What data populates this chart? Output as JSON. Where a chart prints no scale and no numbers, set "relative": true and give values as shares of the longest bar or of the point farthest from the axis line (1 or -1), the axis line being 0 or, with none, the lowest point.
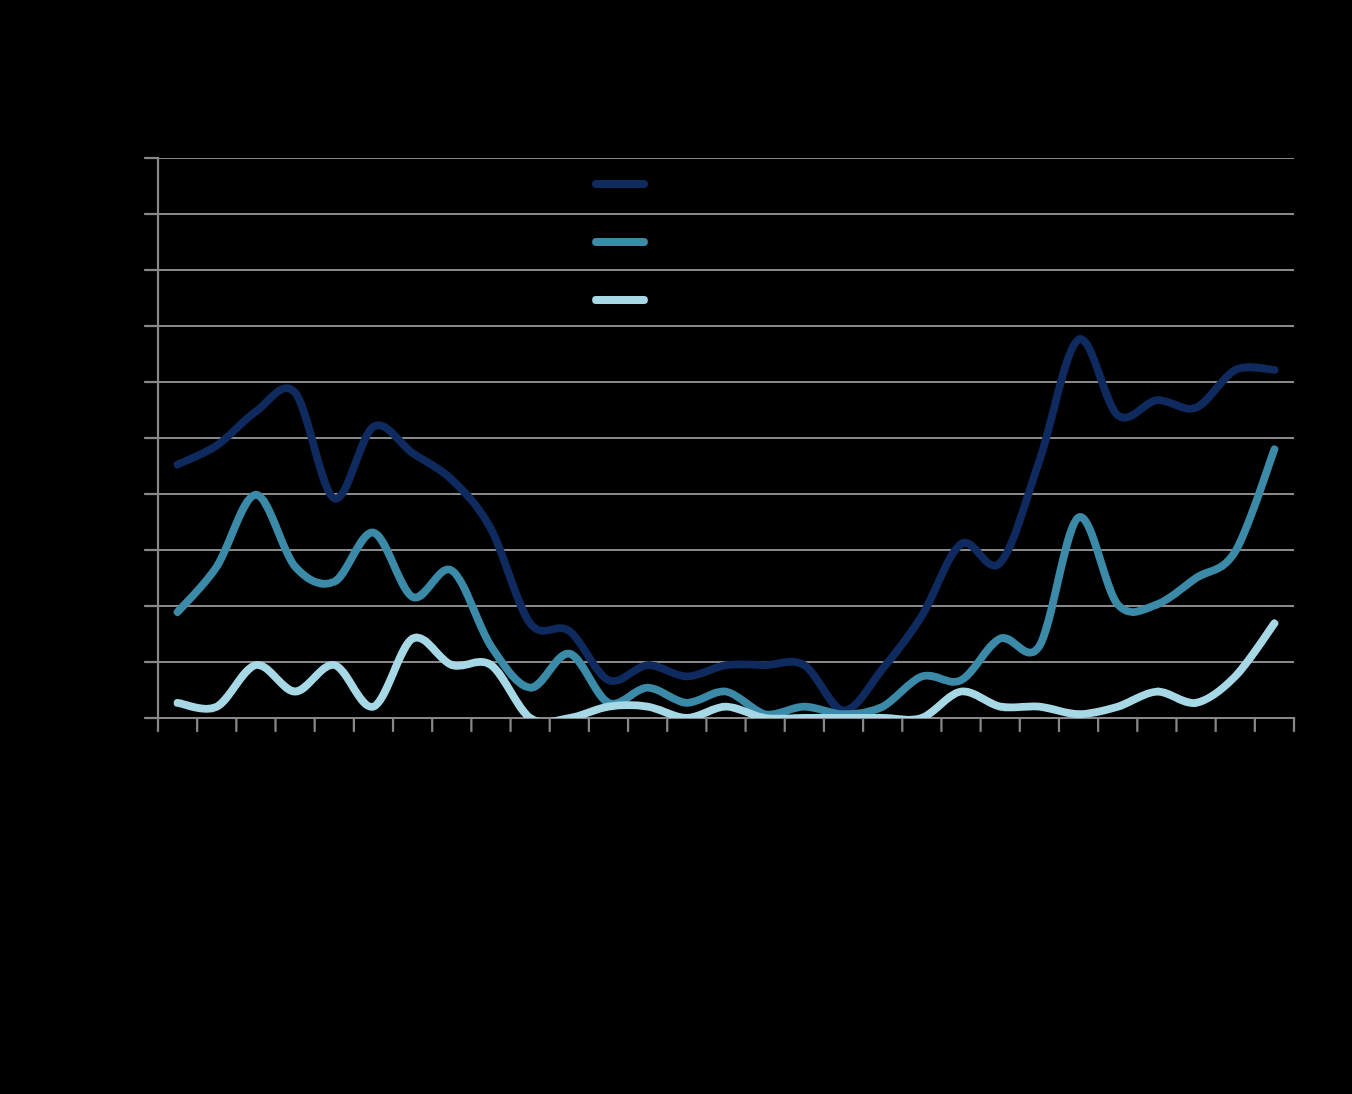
{
  "chart_data": {
    "type": "line",
    "relative": true,
    "grid": "y",
    "line_style": "solid",
    "marker": "none",
    "categories": [
      null,
      null,
      null,
      null,
      null,
      null,
      null,
      null,
      null,
      null,
      null,
      null,
      null,
      null,
      null,
      null,
      null,
      null,
      null,
      null,
      null,
      null,
      null,
      null,
      null,
      null,
      null,
      null,
      null
    ],
    "series": [
      {
        "color": "#0f2a5e",
        "values": [
          0.67,
          0.72,
          0.81,
          0.86,
          0.58,
          0.77,
          0.7,
          0.63,
          0.5,
          0.25,
          0.23,
          0.1,
          0.14,
          0.11,
          0.14,
          0.14,
          0.14,
          0.02,
          0.13,
          0.27,
          0.46,
          0.41,
          0.68,
          1.0,
          0.8,
          0.84,
          0.82,
          0.92,
          0.92
        ]
      },
      {
        "color": "#3a8aa8",
        "values": [
          0.28,
          0.4,
          0.59,
          0.4,
          0.36,
          0.49,
          0.32,
          0.39,
          0.19,
          0.08,
          0.17,
          0.04,
          0.08,
          0.04,
          0.07,
          0.01,
          0.03,
          0.01,
          0.03,
          0.11,
          0.1,
          0.21,
          0.19,
          0.53,
          0.3,
          0.3,
          0.37,
          0.44,
          0.71
        ]
      },
      {
        "color": "#a6d8e6",
        "values": [
          0.04,
          0.03,
          0.14,
          0.07,
          0.14,
          0.03,
          0.21,
          0.14,
          0.14,
          0,
          0,
          0.03,
          0.03,
          0,
          0.03,
          0,
          0,
          0,
          0,
          0,
          0.07,
          0.03,
          0.03,
          0.01,
          0.03,
          0.07,
          0.04,
          0.11,
          0.25
        ]
      }
    ]
  }
}
